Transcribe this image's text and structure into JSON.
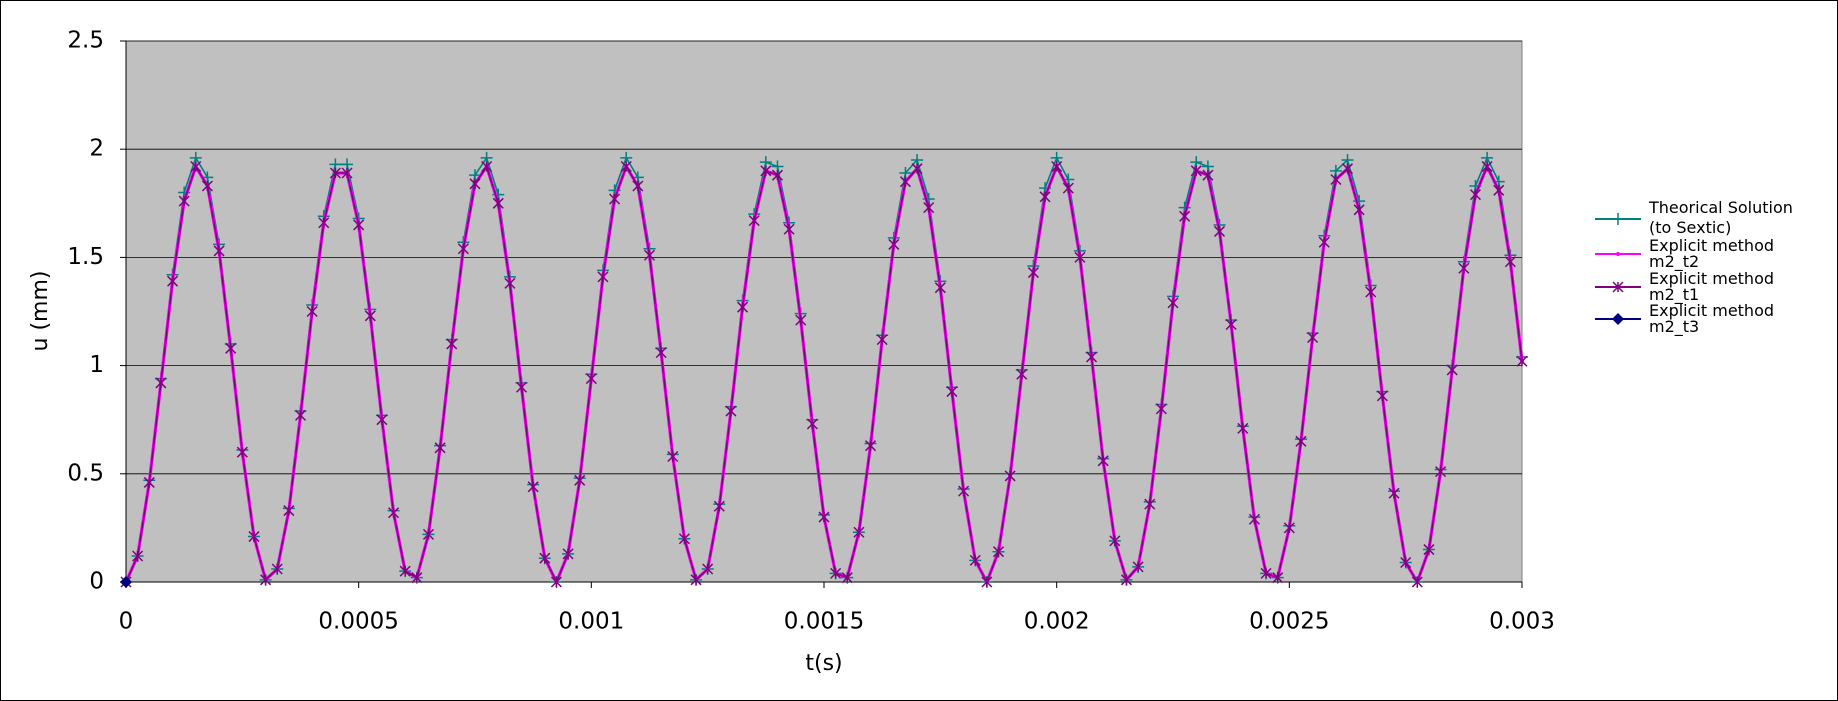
{
  "chart_data": {
    "type": "line",
    "x_label": "t(s)",
    "y_label": "u (mm)",
    "xlim": [
      0,
      0.003
    ],
    "ylim": [
      0,
      2.5
    ],
    "xticks": [
      0,
      0.0005,
      0.001,
      0.0015,
      0.002,
      0.0025,
      0.003
    ],
    "yticks": [
      0,
      0.5,
      1,
      1.5,
      2,
      2.5
    ],
    "grid": true,
    "plot_background": "#c0c0c0",
    "legend": "right",
    "x": [
      0,
      2.5e-05,
      5e-05,
      7.5e-05,
      0.0001,
      0.000125,
      0.00015,
      0.000175,
      0.0002,
      0.000225,
      0.00025,
      0.000275,
      0.0003,
      0.000325,
      0.00035,
      0.000375,
      0.0004,
      0.000425,
      0.00045,
      0.000475,
      0.0005,
      0.000525,
      0.00055,
      0.000575,
      0.0006,
      0.000625,
      0.00065,
      0.000675,
      0.0007,
      0.000725,
      0.00075,
      0.000775,
      0.0008,
      0.000825,
      0.00085,
      0.000875,
      0.0009,
      0.000925,
      0.00095,
      0.000975,
      0.001,
      0.001025,
      0.00105,
      0.001075,
      0.0011,
      0.001125,
      0.00115,
      0.001175,
      0.0012,
      0.001225,
      0.00125,
      0.001275,
      0.0013,
      0.001325,
      0.00135,
      0.001375,
      0.0014,
      0.001425,
      0.00145,
      0.001475,
      0.0015,
      0.001525,
      0.00155,
      0.001575,
      0.0016,
      0.001625,
      0.00165,
      0.001675,
      0.0017,
      0.001725,
      0.00175,
      0.001775,
      0.0018,
      0.001825,
      0.00185,
      0.001875,
      0.0019,
      0.001925,
      0.00195,
      0.001975,
      0.002,
      0.002025,
      0.00205,
      0.002075,
      0.0021,
      0.002125,
      0.00215,
      0.002175,
      0.0022,
      0.002225,
      0.00225,
      0.002275,
      0.0023,
      0.002325,
      0.00235,
      0.002375,
      0.0024,
      0.002425,
      0.00245,
      0.002475,
      0.0025,
      0.002525,
      0.00255,
      0.002575,
      0.0026,
      0.002625,
      0.00265,
      0.002675,
      0.0027,
      0.002725,
      0.00275,
      0.002775,
      0.0028,
      0.002825,
      0.00285,
      0.002875,
      0.0029,
      0.002925,
      0.00295,
      0.002975,
      0.003
    ],
    "series": [
      {
        "name": "Theorical Solution (to Sextic)",
        "color": "#008080",
        "marker": "plus",
        "width": 1.6,
        "values": [
          0,
          0.12,
          0.47,
          0.94,
          1.42,
          1.8,
          1.96,
          1.87,
          1.56,
          1.1,
          0.61,
          0.21,
          0.01,
          0.06,
          0.34,
          0.79,
          1.28,
          1.69,
          1.93,
          1.93,
          1.68,
          1.26,
          0.77,
          0.33,
          0.05,
          0.02,
          0.22,
          0.63,
          1.12,
          1.57,
          1.88,
          1.96,
          1.79,
          1.41,
          0.92,
          0.45,
          0.11,
          0,
          0.13,
          0.48,
          0.96,
          1.44,
          1.81,
          1.96,
          1.87,
          1.54,
          1.08,
          0.59,
          0.2,
          0.01,
          0.06,
          0.36,
          0.81,
          1.3,
          1.7,
          1.94,
          1.92,
          1.66,
          1.24,
          0.75,
          0.31,
          0.04,
          0.02,
          0.23,
          0.64,
          1.14,
          1.59,
          1.89,
          1.95,
          1.77,
          1.39,
          0.9,
          0.43,
          0.1,
          0,
          0.14,
          0.5,
          0.98,
          1.46,
          1.82,
          1.96,
          1.86,
          1.53,
          1.06,
          0.57,
          0.19,
          0.01,
          0.07,
          0.37,
          0.82,
          1.32,
          1.73,
          1.94,
          1.92,
          1.65,
          1.21,
          0.72,
          0.3,
          0.04,
          0.02,
          0.26,
          0.66,
          1.15,
          1.6,
          1.9,
          1.95,
          1.76,
          1.37,
          0.88,
          0.42,
          0.09,
          0,
          0.15,
          0.52,
          1.0,
          1.48,
          1.83,
          1.96,
          1.85,
          1.51,
          1.04
        ]
      },
      {
        "name": "Explicit method m2_t2",
        "color": "#ff00ff",
        "marker": "dot",
        "width": 3.2,
        "values": [
          0,
          0.12,
          0.46,
          0.92,
          1.39,
          1.76,
          1.92,
          1.83,
          1.53,
          1.08,
          0.6,
          0.21,
          0.01,
          0.06,
          0.33,
          0.77,
          1.25,
          1.66,
          1.89,
          1.89,
          1.65,
          1.23,
          0.75,
          0.32,
          0.05,
          0.02,
          0.22,
          0.62,
          1.1,
          1.54,
          1.84,
          1.92,
          1.75,
          1.38,
          0.9,
          0.44,
          0.11,
          0,
          0.13,
          0.47,
          0.94,
          1.41,
          1.77,
          1.92,
          1.83,
          1.51,
          1.06,
          0.58,
          0.2,
          0.01,
          0.06,
          0.35,
          0.79,
          1.27,
          1.67,
          1.9,
          1.88,
          1.63,
          1.21,
          0.73,
          0.3,
          0.04,
          0.02,
          0.23,
          0.63,
          1.12,
          1.56,
          1.85,
          1.91,
          1.73,
          1.36,
          0.88,
          0.42,
          0.1,
          0,
          0.14,
          0.49,
          0.96,
          1.43,
          1.78,
          1.92,
          1.82,
          1.5,
          1.04,
          0.56,
          0.19,
          0.01,
          0.07,
          0.36,
          0.8,
          1.29,
          1.69,
          1.9,
          1.88,
          1.62,
          1.19,
          0.71,
          0.29,
          0.04,
          0.02,
          0.25,
          0.65,
          1.13,
          1.57,
          1.86,
          1.91,
          1.72,
          1.34,
          0.86,
          0.41,
          0.09,
          0,
          0.15,
          0.51,
          0.98,
          1.45,
          1.79,
          1.92,
          1.81,
          1.48,
          1.02
        ]
      },
      {
        "name": "Explicit method m2_t1",
        "color": "#800080",
        "marker": "star",
        "width": 1.6,
        "values": [
          0,
          0.12,
          0.46,
          0.92,
          1.39,
          1.76,
          1.92,
          1.83,
          1.53,
          1.08,
          0.6,
          0.21,
          0.01,
          0.06,
          0.33,
          0.77,
          1.25,
          1.66,
          1.89,
          1.89,
          1.65,
          1.23,
          0.75,
          0.32,
          0.05,
          0.02,
          0.22,
          0.62,
          1.1,
          1.54,
          1.84,
          1.92,
          1.75,
          1.38,
          0.9,
          0.44,
          0.11,
          0,
          0.13,
          0.47,
          0.94,
          1.41,
          1.77,
          1.92,
          1.83,
          1.51,
          1.06,
          0.58,
          0.2,
          0.01,
          0.06,
          0.35,
          0.79,
          1.27,
          1.67,
          1.9,
          1.88,
          1.63,
          1.21,
          0.73,
          0.3,
          0.04,
          0.02,
          0.23,
          0.63,
          1.12,
          1.56,
          1.85,
          1.91,
          1.73,
          1.36,
          0.88,
          0.42,
          0.1,
          0,
          0.14,
          0.49,
          0.96,
          1.43,
          1.78,
          1.92,
          1.82,
          1.5,
          1.04,
          0.56,
          0.19,
          0.01,
          0.07,
          0.36,
          0.8,
          1.29,
          1.69,
          1.9,
          1.88,
          1.62,
          1.19,
          0.71,
          0.29,
          0.04,
          0.02,
          0.25,
          0.65,
          1.13,
          1.57,
          1.86,
          1.91,
          1.72,
          1.34,
          0.86,
          0.41,
          0.09,
          0,
          0.15,
          0.51,
          0.98,
          1.45,
          1.79,
          1.92,
          1.81,
          1.48,
          1.02
        ]
      },
      {
        "name": "Explicit method m2_t3",
        "color": "#000080",
        "marker": "diamond",
        "width": 1.6,
        "x": [
          0
        ],
        "values": [
          0
        ]
      }
    ]
  }
}
